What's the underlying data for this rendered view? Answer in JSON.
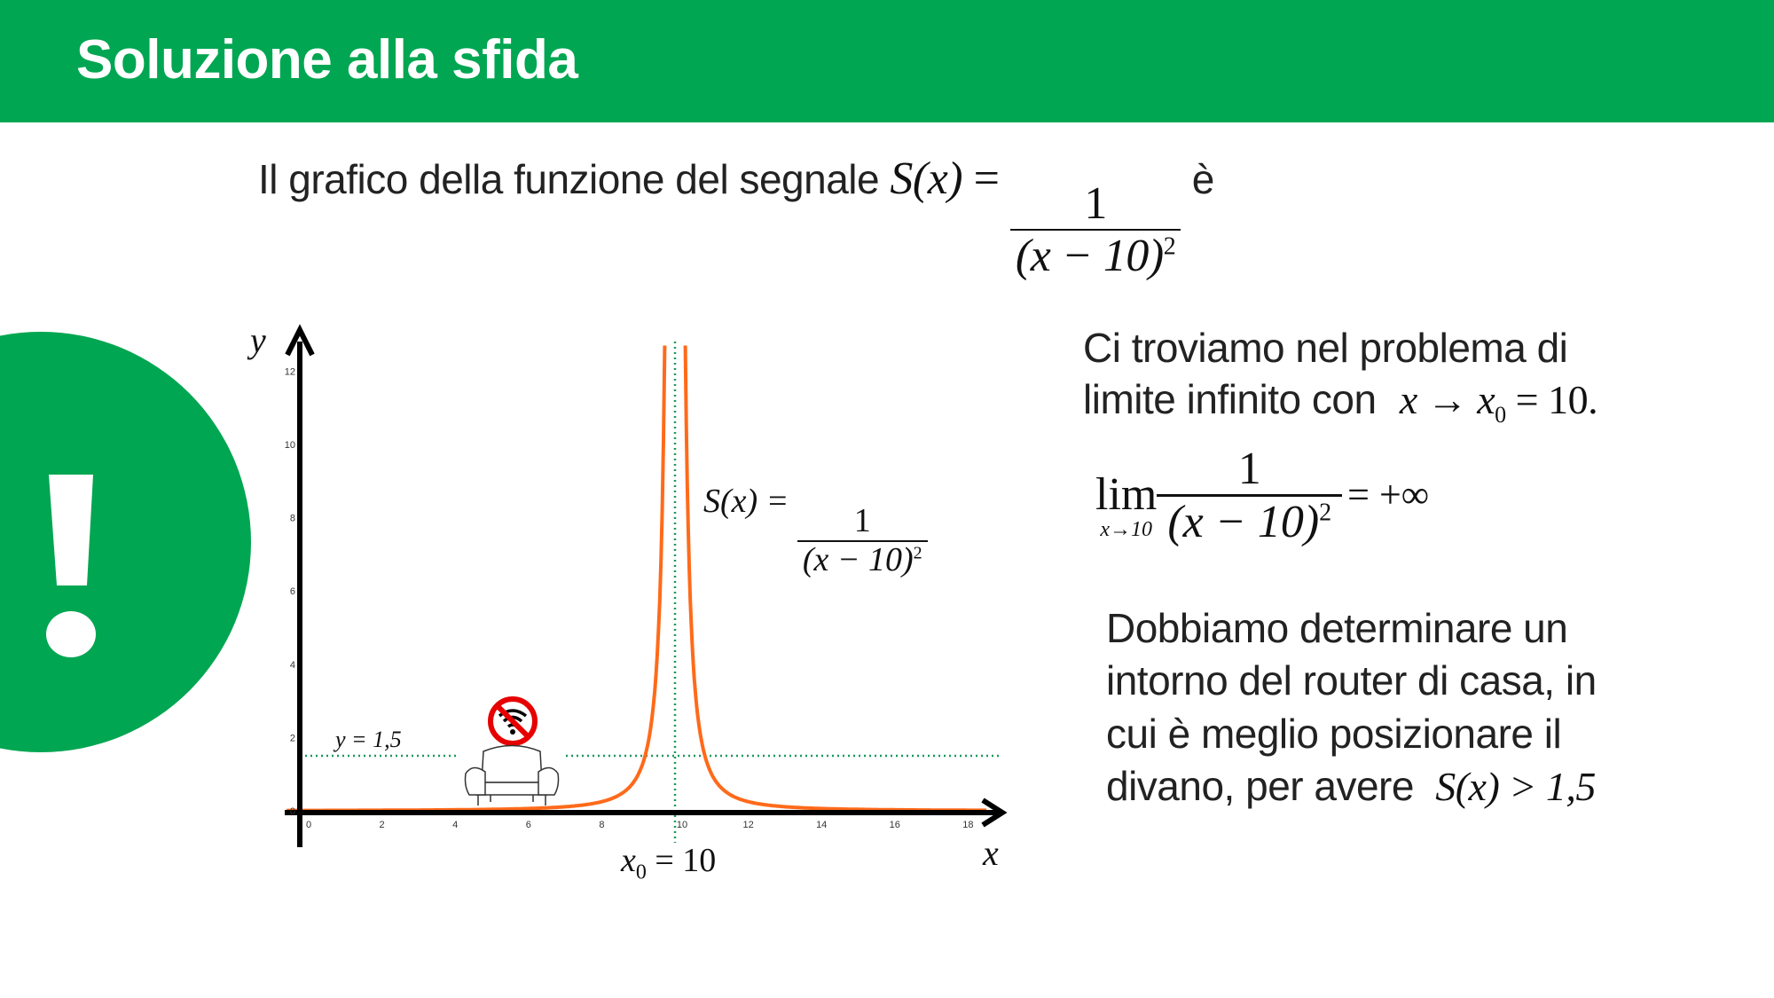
{
  "header": {
    "title": "Soluzione alla sfida"
  },
  "badge": {
    "symbol": "!"
  },
  "intro": {
    "text": "Il grafico della funzione del segnale",
    "func": "S(x)",
    "num": "1",
    "den": "(x − 10)",
    "exp": "2",
    "tail": "è"
  },
  "explanation": {
    "line1": "Ci troviamo nel problema di",
    "line2": "limite infinito con",
    "cond": "x → x",
    "cond_sub": "0",
    "cond_tail": " = 10."
  },
  "limit": {
    "lim": "lim",
    "under": "x→10",
    "num": "1",
    "den": "(x − 10)",
    "exp": "2",
    "result": "= +∞"
  },
  "task": {
    "lines": [
      "Dobbiamo determinare un",
      "intorno del router di casa, in",
      "cui è meglio posizionare il",
      "divano, per avere"
    ],
    "ineq": "S(x) > 1,5"
  },
  "chart_data": {
    "type": "line",
    "function": "S(x) = 1/(x-10)^2",
    "xlabel": "x",
    "ylabel": "y",
    "xlim": [
      0,
      18
    ],
    "ylim": [
      0,
      12
    ],
    "x_ticks": [
      "0",
      "2",
      "4",
      "6",
      "8",
      "10",
      "12",
      "14",
      "16",
      "18"
    ],
    "y_ticks": [
      "0",
      "2",
      "4",
      "6",
      "8",
      "10",
      "12"
    ],
    "asymptote_label": "x0 = 10",
    "asymptote_x": 10,
    "threshold_label": "y = 1,5",
    "threshold_y": 1.5,
    "curve_label": {
      "func": "S(x) =",
      "num": "1",
      "den": "(x − 10)",
      "exp": "2"
    },
    "x0_label": {
      "var": "x",
      "sub": "0",
      "rest": " = 10"
    },
    "colors": {
      "curve": "#ff6a1a",
      "guides": "#1a9a5a",
      "axes": "#000000",
      "accent": "#00a651",
      "no_wifi": "#e60000"
    },
    "icons": [
      "sofa-icon",
      "no-wifi-icon"
    ]
  }
}
